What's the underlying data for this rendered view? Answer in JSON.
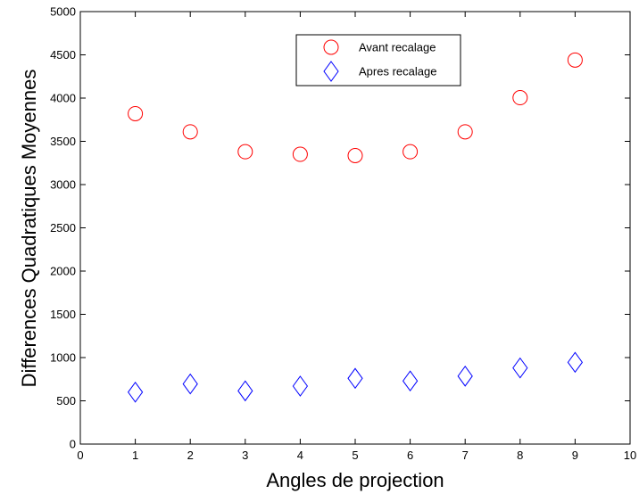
{
  "chart_data": {
    "type": "scatter",
    "title": "",
    "xlabel": "Angles de projection",
    "ylabel": "Differences Quadratiques Moyennes",
    "xlim": [
      0,
      10
    ],
    "ylim": [
      0,
      5000
    ],
    "xticks": [
      0,
      1,
      2,
      3,
      4,
      5,
      6,
      7,
      8,
      9,
      10
    ],
    "yticks": [
      0,
      500,
      1000,
      1500,
      2000,
      2500,
      3000,
      3500,
      4000,
      4500,
      5000
    ],
    "grid": false,
    "legend_position": "top-right",
    "x": [
      1,
      2,
      3,
      4,
      5,
      6,
      7,
      8,
      9
    ],
    "series": [
      {
        "name": "Avant recalage",
        "marker": "circle",
        "color": "#ff0000",
        "values": [
          3820,
          3610,
          3380,
          3350,
          3335,
          3380,
          3610,
          4005,
          4440
        ]
      },
      {
        "name": "Apres recalage",
        "marker": "diamond",
        "color": "#0000ff",
        "values": [
          600,
          695,
          615,
          670,
          760,
          730,
          785,
          880,
          945
        ]
      }
    ]
  }
}
